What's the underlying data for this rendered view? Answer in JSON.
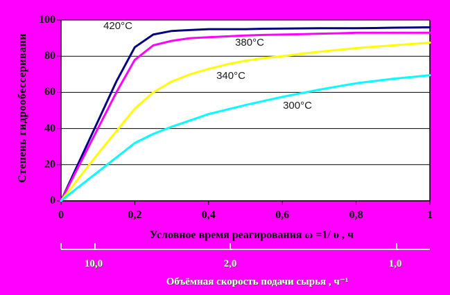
{
  "colors": {
    "background": "#FF00FF",
    "plot_background": "#FFFFFF",
    "grid": "#000000",
    "axis": "#000000",
    "secondary_axis": "#FFFFFF"
  },
  "y_axis": {
    "title": "Степень гидрообессеривани",
    "tick_labels": [
      "100",
      "80",
      "60",
      "40",
      "20",
      "0"
    ],
    "tick_values": [
      100,
      80,
      60,
      40,
      20,
      0
    ]
  },
  "x_axis": {
    "title": "Условное время реагирования  ω =1/ υ , ч",
    "tick_labels": [
      "0",
      "0,2",
      "0,4",
      "0,6",
      "0,8",
      "1"
    ],
    "tick_values": [
      0,
      0.2,
      0.4,
      0.6,
      0.8,
      1
    ]
  },
  "secondary_axis": {
    "title": "Объёмная скорость подачи сырья , ч⁻¹",
    "tick_labels": [
      "10,0",
      "2,0",
      "1,0"
    ]
  },
  "curve_labels": [
    "420°C",
    "380°C",
    "340°C",
    "300°C"
  ],
  "chart_data": {
    "type": "line",
    "title": "",
    "xlabel": "Условное время реагирования  ω =1/ υ , ч",
    "ylabel": "Степень гидрообессеривани",
    "x2label": "Объёмная скорость подачи сырья , ч⁻¹",
    "xlim": [
      0,
      1
    ],
    "ylim": [
      0,
      100
    ],
    "grid": "horizontal",
    "legend_position": "inline-annotations",
    "x": [
      0,
      0.05,
      0.1,
      0.15,
      0.2,
      0.25,
      0.3,
      0.35,
      0.4,
      0.45,
      0.5,
      0.55,
      0.6,
      0.65,
      0.7,
      0.75,
      0.8,
      0.85,
      0.9,
      0.95,
      1.0
    ],
    "series": [
      {
        "name": "420°C",
        "color": "#000080",
        "values": [
          0,
          22,
          44,
          66,
          85,
          92,
          94,
          94.5,
          95,
          95,
          95,
          95.2,
          95.3,
          95.4,
          95.5,
          95.5,
          95.5,
          95.6,
          95.8,
          95.9,
          96
        ]
      },
      {
        "name": "380°C",
        "color": "#FF00FF",
        "values": [
          0,
          20,
          40,
          60,
          78,
          86,
          88.5,
          90,
          90.5,
          91,
          91.5,
          91.8,
          92,
          92.2,
          92.5,
          92.7,
          93,
          93,
          93,
          93,
          93
        ]
      },
      {
        "name": "340°C",
        "color": "#FFFF00",
        "values": [
          0,
          13,
          26,
          38.5,
          51,
          60,
          66,
          70,
          73,
          75.5,
          77.5,
          79,
          80,
          81.3,
          82.5,
          83.5,
          84.5,
          85.3,
          86,
          86.8,
          87.5
        ]
      },
      {
        "name": "300°C",
        "color": "#00FFFF",
        "values": [
          0,
          8,
          16,
          24,
          32,
          37,
          41,
          44.5,
          48,
          50.5,
          53,
          55.3,
          57.5,
          59.5,
          61.5,
          63.3,
          65,
          66.3,
          67.5,
          68.5,
          69.5
        ]
      }
    ]
  }
}
